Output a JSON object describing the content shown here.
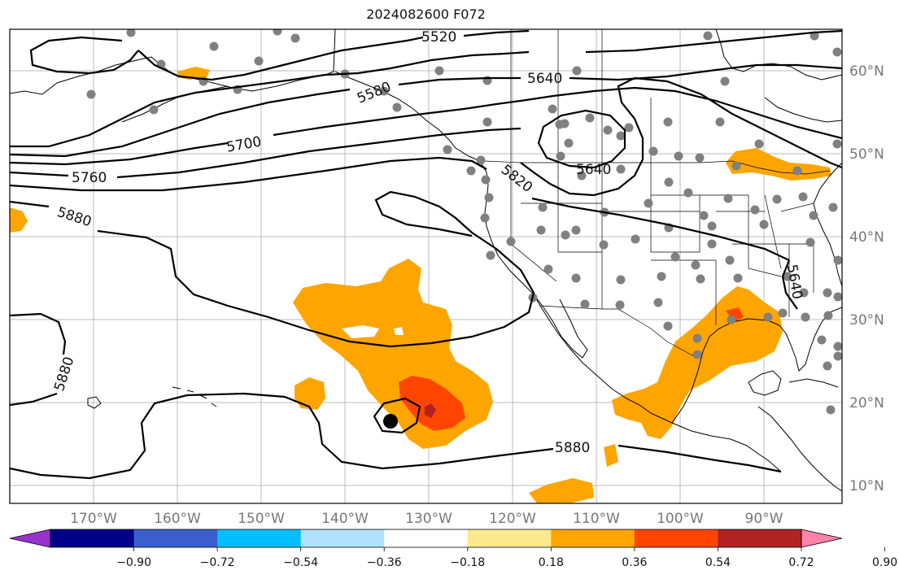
{
  "title": "2024082600 F072",
  "lon_labels": [
    "170°W",
    "160°W",
    "150°W",
    "140°W",
    "130°W",
    "120°W",
    "110°W",
    "100°W",
    "90°W"
  ],
  "lat_labels": [
    "60°N",
    "50°N",
    "40°N",
    "30°N",
    "20°N",
    "10°N"
  ],
  "contour_labels": [
    "5520",
    "5640",
    "5580",
    "5700",
    "5760",
    "5820",
    "5640",
    "5880",
    "5880",
    "5880",
    "5640"
  ],
  "colorbar": {
    "colors": [
      "#9932cc",
      "#00008b",
      "#3a5fcd",
      "#00bfff",
      "#b0e2ff",
      "#ffffff",
      "#fbe98c",
      "#ffa500",
      "#ff4500",
      "#b22222",
      "#ff82ab"
    ],
    "tick_labels": [
      "−0.90",
      "−0.72",
      "−0.54",
      "−0.36",
      "−0.18",
      "0.18",
      "0.36",
      "0.54",
      "0.72",
      "0.90"
    ]
  },
  "colors": {
    "fill_orange": "#ffa500",
    "fill_red": "#ff4500",
    "fill_darkred": "#b22222",
    "station": "#808080",
    "grid": "#bbbbbb"
  }
}
